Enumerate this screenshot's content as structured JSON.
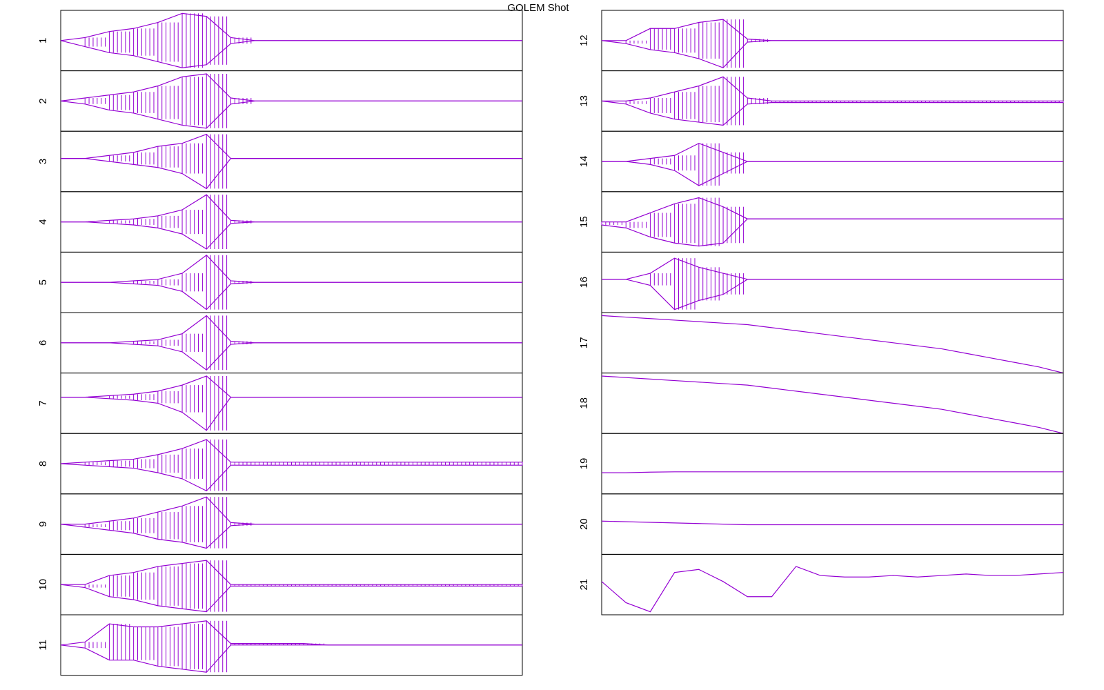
{
  "title": "GOLEM Shot",
  "chart_data": [
    {
      "type": "line",
      "ylabel": "1",
      "color": "#9400d3",
      "ylim": [
        -1,
        1
      ],
      "series": [
        {
          "values": [
            0,
            0.1,
            0.3,
            0.4,
            0.6,
            0.9,
            0.8,
            0.1,
            0,
            0,
            0,
            0,
            0,
            0,
            0,
            0,
            0,
            0,
            0,
            0
          ]
        },
        {
          "values": [
            0,
            -0.2,
            -0.4,
            -0.5,
            -0.7,
            -0.9,
            -0.8,
            -0.1,
            0,
            0,
            0,
            0,
            0,
            0,
            0,
            0,
            0,
            0,
            0,
            0
          ]
        }
      ]
    },
    {
      "type": "line",
      "ylabel": "2",
      "color": "#9400d3",
      "ylim": [
        -1,
        1
      ],
      "series": [
        {
          "values": [
            0,
            0.1,
            0.2,
            0.3,
            0.5,
            0.8,
            0.9,
            0.1,
            0,
            0,
            0,
            0,
            0,
            0,
            0,
            0,
            0,
            0,
            0,
            0
          ]
        },
        {
          "values": [
            0,
            -0.1,
            -0.3,
            -0.4,
            -0.6,
            -0.8,
            -0.9,
            -0.1,
            0,
            0,
            0,
            0,
            0,
            0,
            0,
            0,
            0,
            0,
            0,
            0
          ]
        }
      ]
    },
    {
      "type": "line",
      "ylabel": "3",
      "color": "#9400d3",
      "ylim": [
        -1,
        1
      ],
      "series": [
        {
          "values": [
            0.1,
            0.1,
            0.2,
            0.3,
            0.5,
            0.6,
            0.9,
            0.1,
            0.1,
            0.1,
            0.1,
            0.1,
            0.1,
            0.1,
            0.1,
            0.1,
            0.1,
            0.1,
            0.1,
            0.1
          ]
        },
        {
          "values": [
            0.1,
            0.1,
            0,
            -0.1,
            -0.2,
            -0.4,
            -0.9,
            0.1,
            0.1,
            0.1,
            0.1,
            0.1,
            0.1,
            0.1,
            0.1,
            0.1,
            0.1,
            0.1,
            0.1,
            0.1
          ]
        }
      ]
    },
    {
      "type": "line",
      "ylabel": "4",
      "color": "#9400d3",
      "ylim": [
        -1,
        1
      ],
      "series": [
        {
          "values": [
            0,
            0,
            0.05,
            0.1,
            0.2,
            0.4,
            0.9,
            0.05,
            0,
            0,
            0,
            0,
            0,
            0,
            0,
            0,
            0,
            0,
            0,
            0
          ]
        },
        {
          "values": [
            0,
            0,
            -0.05,
            -0.1,
            -0.2,
            -0.4,
            -0.9,
            -0.05,
            0,
            0,
            0,
            0,
            0,
            0,
            0,
            0,
            0,
            0,
            0,
            0
          ]
        }
      ]
    },
    {
      "type": "line",
      "ylabel": "5",
      "color": "#9400d3",
      "ylim": [
        -1,
        1
      ],
      "series": [
        {
          "values": [
            0,
            0,
            0,
            0.05,
            0.1,
            0.3,
            0.9,
            0.05,
            0,
            0,
            0,
            0,
            0,
            0,
            0,
            0,
            0,
            0,
            0,
            0
          ]
        },
        {
          "values": [
            0,
            0,
            0,
            -0.05,
            -0.1,
            -0.3,
            -0.9,
            -0.05,
            0,
            0,
            0,
            0,
            0,
            0,
            0,
            0,
            0,
            0,
            0,
            0
          ]
        }
      ]
    },
    {
      "type": "line",
      "ylabel": "6",
      "color": "#9400d3",
      "ylim": [
        -1,
        1
      ],
      "series": [
        {
          "values": [
            0,
            0,
            0,
            0.05,
            0.1,
            0.3,
            0.9,
            0.05,
            0,
            0,
            0,
            0,
            0,
            0,
            0,
            0,
            0,
            0,
            0,
            0
          ]
        },
        {
          "values": [
            0,
            0,
            0,
            -0.05,
            -0.1,
            -0.3,
            -0.9,
            -0.05,
            0,
            0,
            0,
            0,
            0,
            0,
            0,
            0,
            0,
            0,
            0,
            0
          ]
        }
      ]
    },
    {
      "type": "line",
      "ylabel": "7",
      "color": "#9400d3",
      "ylim": [
        -1,
        1
      ],
      "series": [
        {
          "values": [
            0.2,
            0.2,
            0.25,
            0.3,
            0.4,
            0.6,
            0.9,
            0.2,
            0.2,
            0.2,
            0.2,
            0.2,
            0.2,
            0.2,
            0.2,
            0.2,
            0.2,
            0.2,
            0.2,
            0.2
          ]
        },
        {
          "values": [
            0.2,
            0.2,
            0.15,
            0.1,
            0,
            -0.3,
            -0.9,
            0.2,
            0.2,
            0.2,
            0.2,
            0.2,
            0.2,
            0.2,
            0.2,
            0.2,
            0.2,
            0.2,
            0.2,
            0.2
          ]
        }
      ]
    },
    {
      "type": "line",
      "ylabel": "8",
      "color": "#9400d3",
      "ylim": [
        -1,
        1
      ],
      "series": [
        {
          "values": [
            0,
            0.05,
            0.1,
            0.15,
            0.3,
            0.5,
            0.8,
            0.05,
            0.05,
            0.05,
            0.05,
            0.05,
            0.05,
            0.05,
            0.05,
            0.05,
            0.05,
            0.05,
            0.05,
            0.05
          ]
        },
        {
          "values": [
            0,
            -0.05,
            -0.1,
            -0.15,
            -0.3,
            -0.5,
            -0.9,
            -0.05,
            -0.05,
            -0.05,
            -0.05,
            -0.05,
            -0.05,
            -0.05,
            -0.05,
            -0.05,
            -0.05,
            -0.05,
            -0.05,
            -0.05
          ]
        }
      ]
    },
    {
      "type": "line",
      "ylabel": "9",
      "color": "#9400d3",
      "ylim": [
        -1,
        1
      ],
      "series": [
        {
          "values": [
            0,
            0,
            0.1,
            0.2,
            0.4,
            0.6,
            0.9,
            0.05,
            0,
            0,
            0,
            0,
            0,
            0,
            0,
            0,
            0,
            0,
            0,
            0
          ]
        },
        {
          "values": [
            0,
            -0.1,
            -0.2,
            -0.3,
            -0.5,
            -0.6,
            -0.8,
            -0.05,
            0,
            0,
            0,
            0,
            0,
            0,
            0,
            0,
            0,
            0,
            0,
            0
          ]
        }
      ]
    },
    {
      "type": "line",
      "ylabel": "10",
      "color": "#9400d3",
      "ylim": [
        -1,
        1
      ],
      "series": [
        {
          "values": [
            0,
            0,
            0.3,
            0.4,
            0.6,
            0.7,
            0.8,
            0,
            0,
            0,
            0,
            0,
            0,
            0,
            0,
            0,
            0,
            0,
            0,
            0
          ]
        },
        {
          "values": [
            0,
            -0.1,
            -0.4,
            -0.5,
            -0.7,
            -0.8,
            -0.9,
            -0.05,
            -0.05,
            -0.05,
            -0.05,
            -0.05,
            -0.05,
            -0.05,
            -0.05,
            -0.05,
            -0.05,
            -0.05,
            -0.05,
            -0.05
          ]
        }
      ]
    },
    {
      "type": "line",
      "ylabel": "11",
      "color": "#9400d3",
      "ylim": [
        -1,
        1
      ],
      "series": [
        {
          "values": [
            0,
            0.1,
            0.7,
            0.6,
            0.6,
            0.7,
            0.8,
            0.05,
            0.05,
            0.05,
            0.05,
            0,
            0,
            0,
            0,
            0,
            0,
            0,
            0,
            0
          ]
        },
        {
          "values": [
            0,
            -0.1,
            -0.5,
            -0.5,
            -0.7,
            -0.8,
            -0.9,
            0,
            0,
            0,
            0,
            0,
            0,
            0,
            0,
            0,
            0,
            0,
            0,
            0
          ]
        }
      ]
    },
    {
      "type": "line",
      "ylabel": "12",
      "color": "#9400d3",
      "ylim": [
        -1,
        1
      ],
      "series": [
        {
          "values": [
            0,
            0,
            0.4,
            0.4,
            0.6,
            0.7,
            0.05,
            0,
            0,
            0,
            0,
            0,
            0,
            0,
            0,
            0,
            0,
            0,
            0,
            0
          ]
        },
        {
          "values": [
            0,
            -0.1,
            -0.3,
            -0.4,
            -0.6,
            -0.9,
            -0.05,
            0,
            0,
            0,
            0,
            0,
            0,
            0,
            0,
            0,
            0,
            0,
            0,
            0
          ]
        }
      ]
    },
    {
      "type": "line",
      "ylabel": "13",
      "color": "#9400d3",
      "ylim": [
        -1,
        1
      ],
      "series": [
        {
          "values": [
            0,
            0,
            0.1,
            0.3,
            0.5,
            0.8,
            0.1,
            0,
            0,
            0,
            0,
            0,
            0,
            0,
            0,
            0,
            0,
            0,
            0,
            0
          ]
        },
        {
          "values": [
            0,
            -0.1,
            -0.4,
            -0.6,
            -0.7,
            -0.8,
            -0.1,
            -0.05,
            -0.05,
            -0.05,
            -0.05,
            -0.05,
            -0.05,
            -0.05,
            -0.05,
            -0.05,
            -0.05,
            -0.05,
            -0.05,
            -0.05
          ]
        }
      ]
    },
    {
      "type": "line",
      "ylabel": "14",
      "color": "#9400d3",
      "ylim": [
        -1,
        1
      ],
      "series": [
        {
          "values": [
            0,
            0,
            0.1,
            0.2,
            0.6,
            0.3,
            0,
            0,
            0,
            0,
            0,
            0,
            0,
            0,
            0,
            0,
            0,
            0,
            0,
            0
          ]
        },
        {
          "values": [
            0,
            0,
            -0.1,
            -0.3,
            -0.8,
            -0.4,
            0,
            0,
            0,
            0,
            0,
            0,
            0,
            0,
            0,
            0,
            0,
            0,
            0,
            0
          ]
        }
      ]
    },
    {
      "type": "line",
      "ylabel": "15",
      "color": "#9400d3",
      "ylim": [
        -1,
        1
      ],
      "series": [
        {
          "values": [
            0,
            0,
            0.3,
            0.6,
            0.8,
            0.5,
            0.1,
            0.1,
            0.1,
            0.1,
            0.1,
            0.1,
            0.1,
            0.1,
            0.1,
            0.1,
            0.1,
            0.1,
            0.1,
            0.1
          ]
        },
        {
          "values": [
            -0.1,
            -0.2,
            -0.5,
            -0.7,
            -0.8,
            -0.7,
            0.1,
            0.1,
            0.1,
            0.1,
            0.1,
            0.1,
            0.1,
            0.1,
            0.1,
            0.1,
            0.1,
            0.1,
            0.1,
            0.1
          ]
        }
      ]
    },
    {
      "type": "line",
      "ylabel": "16",
      "color": "#9400d3",
      "ylim": [
        -1,
        1
      ],
      "series": [
        {
          "values": [
            0.1,
            0.1,
            0.3,
            0.8,
            0.5,
            0.3,
            0.1,
            0.1,
            0.1,
            0.1,
            0.1,
            0.1,
            0.1,
            0.1,
            0.1,
            0.1,
            0.1,
            0.1,
            0.1,
            0.1
          ]
        },
        {
          "values": [
            0.1,
            0.1,
            -0.1,
            -0.9,
            -0.6,
            -0.4,
            0.1,
            0.1,
            0.1,
            0.1,
            0.1,
            0.1,
            0.1,
            0.1,
            0.1,
            0.1,
            0.1,
            0.1,
            0.1,
            0.1
          ]
        }
      ]
    },
    {
      "type": "line",
      "ylabel": "17",
      "color": "#9400d3",
      "ylim": [
        -1,
        1
      ],
      "series": [
        {
          "values": [
            0.9,
            0.85,
            0.8,
            0.75,
            0.7,
            0.65,
            0.6,
            0.5,
            0.4,
            0.3,
            0.2,
            0.1,
            0,
            -0.1,
            -0.2,
            -0.35,
            -0.5,
            -0.65,
            -0.8,
            -1
          ]
        }
      ]
    },
    {
      "type": "line",
      "ylabel": "18",
      "color": "#9400d3",
      "ylim": [
        -1,
        1
      ],
      "series": [
        {
          "values": [
            0.9,
            0.85,
            0.8,
            0.75,
            0.7,
            0.65,
            0.6,
            0.5,
            0.4,
            0.3,
            0.2,
            0.1,
            0,
            -0.1,
            -0.2,
            -0.35,
            -0.5,
            -0.65,
            -0.8,
            -1
          ]
        }
      ]
    },
    {
      "type": "line",
      "ylabel": "19",
      "color": "#9400d3",
      "ylim": [
        -1,
        1
      ],
      "series": [
        {
          "values": [
            -0.3,
            -0.3,
            -0.28,
            -0.27,
            -0.27,
            -0.27,
            -0.27,
            -0.27,
            -0.27,
            -0.27,
            -0.27,
            -0.27,
            -0.27,
            -0.27,
            -0.27,
            -0.27,
            -0.27,
            -0.27,
            -0.27,
            -0.27
          ]
        }
      ]
    },
    {
      "type": "line",
      "ylabel": "20",
      "color": "#9400d3",
      "ylim": [
        -1,
        1
      ],
      "series": [
        {
          "values": [
            0.1,
            0.08,
            0.06,
            0.04,
            0.02,
            0,
            -0.02,
            -0.02,
            -0.02,
            -0.02,
            -0.02,
            -0.02,
            -0.02,
            -0.02,
            -0.02,
            -0.02,
            -0.02,
            -0.02,
            -0.02,
            -0.02
          ]
        }
      ]
    },
    {
      "type": "line",
      "ylabel": "21",
      "color": "#9400d3",
      "ylim": [
        -1,
        1
      ],
      "series": [
        {
          "values": [
            0.1,
            -0.6,
            -0.9,
            0.4,
            0.5,
            0.1,
            -0.4,
            -0.4,
            0.6,
            0.3,
            0.25,
            0.25,
            0.3,
            0.25,
            0.3,
            0.35,
            0.3,
            0.3,
            0.35,
            0.4
          ]
        }
      ]
    }
  ]
}
